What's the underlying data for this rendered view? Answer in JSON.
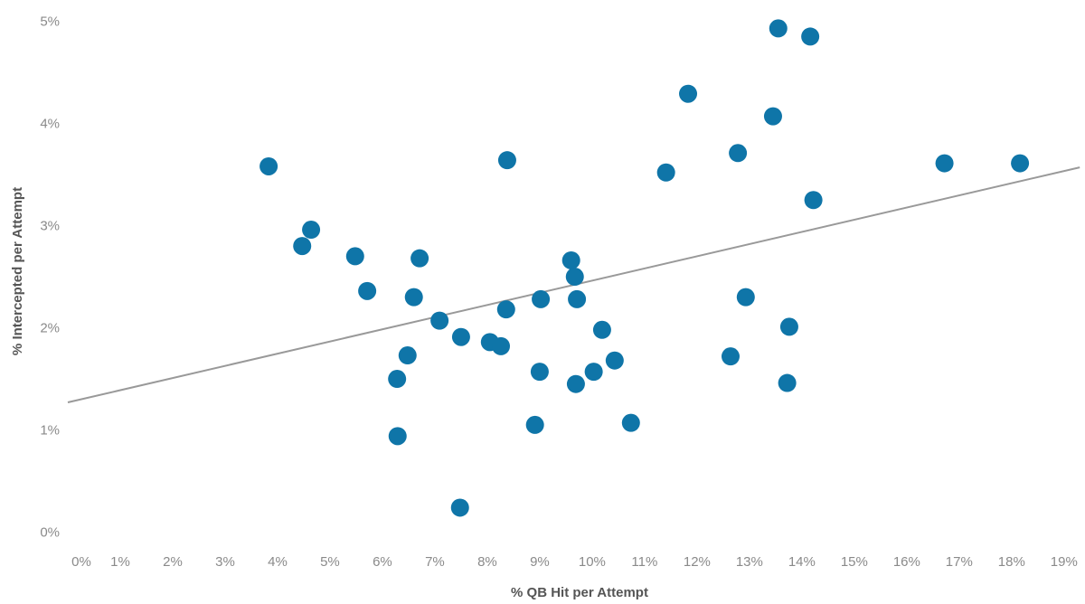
{
  "chart_data": {
    "type": "scatter",
    "x_label": "% QB Hit per Attempt",
    "y_label": "% Intercepted per Attempt",
    "color": "#0f75a8",
    "x": [
      3.83,
      4.47,
      4.64,
      5.48,
      5.71,
      6.28,
      6.29,
      6.48,
      6.6,
      6.71,
      7.09,
      7.5,
      7.48,
      8.05,
      8.26,
      8.36,
      8.38,
      8.91,
      9.0,
      9.02,
      9.6,
      9.67,
      9.71,
      9.69,
      10.03,
      10.19,
      10.43,
      10.74,
      11.41,
      11.83,
      12.64,
      12.78,
      12.93,
      13.45,
      13.55,
      13.72,
      13.76,
      14.16,
      14.22,
      16.72,
      18.16
    ],
    "y": [
      3.59,
      2.81,
      2.97,
      2.71,
      2.37,
      1.51,
      0.95,
      1.74,
      2.31,
      2.69,
      2.08,
      1.92,
      0.25,
      1.87,
      1.83,
      2.19,
      3.65,
      1.06,
      1.58,
      2.29,
      2.67,
      2.51,
      2.29,
      1.46,
      1.58,
      1.99,
      1.69,
      1.08,
      3.53,
      4.3,
      1.73,
      3.72,
      2.31,
      4.08,
      4.94,
      1.47,
      2.02,
      4.86,
      3.26,
      3.62,
      3.62
    ],
    "trendline": {
      "color": "#999999",
      "x": [
        0,
        19.3
      ],
      "y": [
        1.28,
        3.58
      ]
    },
    "xlim": [
      0,
      19.4
    ],
    "ylim": [
      -0.1,
      5.2
    ],
    "xticks": [
      {
        "value": 0,
        "label": "0%"
      },
      {
        "value": 1,
        "label": "1%"
      },
      {
        "value": 2,
        "label": "2%"
      },
      {
        "value": 3,
        "label": "3%"
      },
      {
        "value": 4,
        "label": "4%"
      },
      {
        "value": 5,
        "label": "5%"
      },
      {
        "value": 6,
        "label": "6%"
      },
      {
        "value": 7,
        "label": "7%"
      },
      {
        "value": 8,
        "label": "8%"
      },
      {
        "value": 9,
        "label": "9%"
      },
      {
        "value": 10,
        "label": "10%"
      },
      {
        "value": 11,
        "label": "11%"
      },
      {
        "value": 12,
        "label": "12%"
      },
      {
        "value": 13,
        "label": "13%"
      },
      {
        "value": 14,
        "label": "14%"
      },
      {
        "value": 15,
        "label": "15%"
      },
      {
        "value": 16,
        "label": "16%"
      },
      {
        "value": 17,
        "label": "17%"
      },
      {
        "value": 18,
        "label": "18%"
      },
      {
        "value": 19,
        "label": "19%"
      }
    ],
    "yticks": [
      {
        "value": 0,
        "label": "0%"
      },
      {
        "value": 1,
        "label": "1%"
      },
      {
        "value": 2,
        "label": "2%"
      },
      {
        "value": 3,
        "label": "3%"
      },
      {
        "value": 4,
        "label": "4%"
      },
      {
        "value": 5,
        "label": "5%"
      }
    ],
    "grid": false
  }
}
